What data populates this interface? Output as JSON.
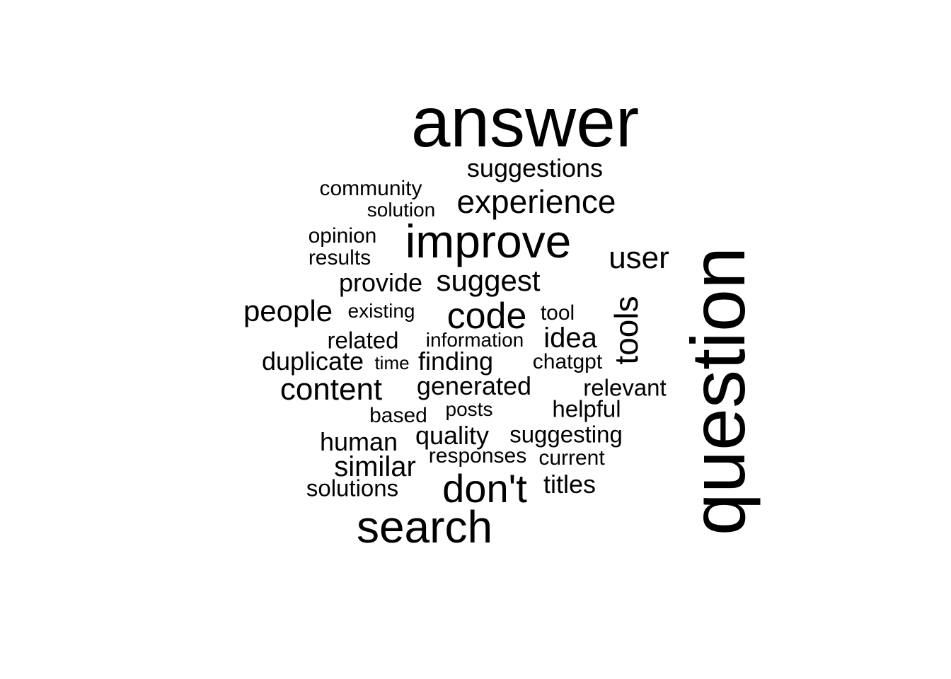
{
  "text_color": "#000000",
  "background_color": "#ffffff",
  "words": [
    {
      "text": "answer",
      "vertical": false
    },
    {
      "text": "question",
      "vertical": true
    },
    {
      "text": "improve",
      "vertical": false
    },
    {
      "text": "search",
      "vertical": false
    },
    {
      "text": "don't",
      "vertical": false
    },
    {
      "text": "code",
      "vertical": false
    },
    {
      "text": "experience",
      "vertical": false
    },
    {
      "text": "suggest",
      "vertical": false
    },
    {
      "text": "user",
      "vertical": false
    },
    {
      "text": "tools",
      "vertical": true
    },
    {
      "text": "content",
      "vertical": false
    },
    {
      "text": "people",
      "vertical": false
    },
    {
      "text": "similar",
      "vertical": false
    },
    {
      "text": "idea",
      "vertical": false
    },
    {
      "text": "suggestions",
      "vertical": false
    },
    {
      "text": "provide",
      "vertical": false
    },
    {
      "text": "duplicate",
      "vertical": false
    },
    {
      "text": "finding",
      "vertical": false
    },
    {
      "text": "generated",
      "vertical": false
    },
    {
      "text": "human",
      "vertical": false
    },
    {
      "text": "quality",
      "vertical": false
    },
    {
      "text": "suggesting",
      "vertical": false
    },
    {
      "text": "titles",
      "vertical": false
    },
    {
      "text": "related",
      "vertical": false
    },
    {
      "text": "relevant",
      "vertical": false
    },
    {
      "text": "helpful",
      "vertical": false
    },
    {
      "text": "solutions",
      "vertical": false
    },
    {
      "text": "community",
      "vertical": false
    },
    {
      "text": "opinion",
      "vertical": false
    },
    {
      "text": "results",
      "vertical": false
    },
    {
      "text": "solution",
      "vertical": false
    },
    {
      "text": "existing",
      "vertical": false
    },
    {
      "text": "tool",
      "vertical": false
    },
    {
      "text": "information",
      "vertical": false
    },
    {
      "text": "chatgpt",
      "vertical": false
    },
    {
      "text": "time",
      "vertical": false
    },
    {
      "text": "based",
      "vertical": false
    },
    {
      "text": "posts",
      "vertical": false
    },
    {
      "text": "responses",
      "vertical": false
    },
    {
      "text": "current",
      "vertical": false
    }
  ]
}
